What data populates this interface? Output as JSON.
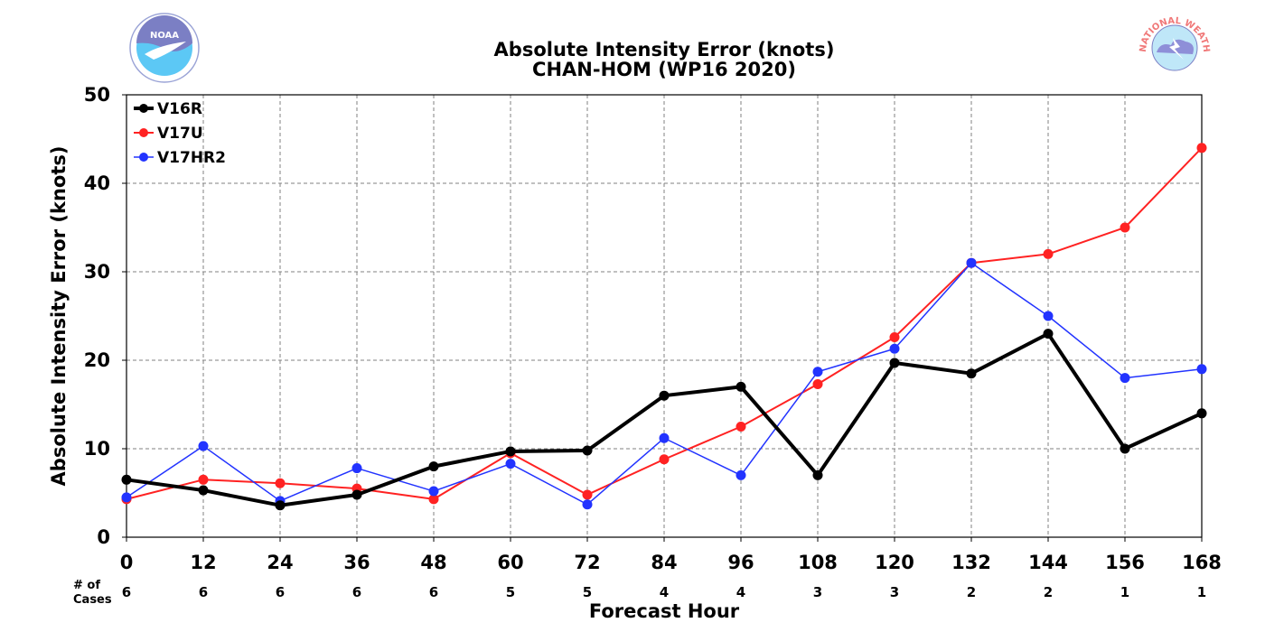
{
  "chart_data": {
    "type": "line",
    "title": "Absolute Intensity Error (knots)",
    "subtitle": "CHAN-HOM (WP16 2020)",
    "xlabel": "Forecast Hour",
    "ylabel": "Absolute Intensity Error (knots)",
    "x": [
      0,
      12,
      24,
      36,
      48,
      60,
      72,
      84,
      96,
      108,
      120,
      132,
      144,
      156,
      168
    ],
    "xlim": [
      0,
      168
    ],
    "ylim": [
      0,
      50
    ],
    "yticks": [
      0,
      10,
      20,
      30,
      40,
      50
    ],
    "grid": true,
    "legend_position": "top-left",
    "cases_label": [
      "# of",
      "Cases"
    ],
    "cases": [
      6,
      6,
      6,
      6,
      6,
      5,
      5,
      4,
      4,
      3,
      3,
      2,
      2,
      1,
      1
    ],
    "series": [
      {
        "name": "V16R",
        "color": "#000000",
        "values": [
          6.5,
          5.3,
          3.6,
          4.8,
          8.0,
          9.7,
          9.8,
          16.0,
          17.0,
          7.0,
          19.7,
          18.5,
          23.0,
          10.0,
          14.0
        ]
      },
      {
        "name": "V17U",
        "color": "#ff2222",
        "values": [
          4.3,
          6.5,
          6.1,
          5.5,
          4.3,
          9.5,
          4.8,
          8.8,
          12.5,
          17.3,
          22.6,
          31.0,
          32.0,
          35.0,
          44.0
        ]
      },
      {
        "name": "V17HR2",
        "color": "#2233ff",
        "values": [
          4.5,
          10.3,
          4.1,
          7.8,
          5.2,
          8.3,
          3.7,
          11.2,
          7.0,
          18.7,
          21.3,
          31.0,
          25.0,
          18.0,
          19.0
        ]
      }
    ]
  },
  "logos": {
    "left": {
      "name": "noaa-logo",
      "text": "NOAA"
    },
    "right": {
      "name": "nws-logo",
      "text": "NATIONAL WEATHER SERVICE"
    }
  }
}
